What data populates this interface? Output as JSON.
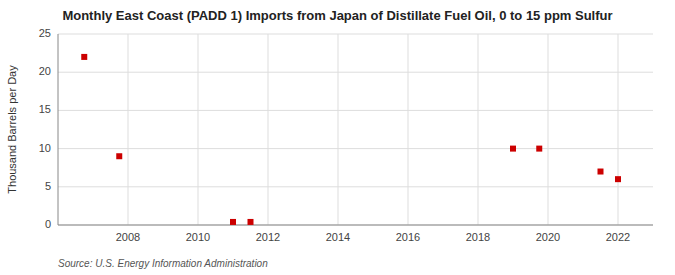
{
  "chart_data": {
    "type": "scatter",
    "title": "Monthly East Coast (PADD 1) Imports from Japan of Distillate Fuel Oil, 0 to 15 ppm Sulfur",
    "ylabel": "Thousand Barrels per Day",
    "source": "Source: U.S. Energy Information Administration",
    "x": [
      2006.75,
      2007.75,
      2011.0,
      2011.5,
      2019.0,
      2019.75,
      2021.5,
      2022.0
    ],
    "values": [
      22.0,
      9.0,
      0.4,
      0.4,
      10.0,
      10.0,
      7.0,
      6.0
    ],
    "color": "#cc0000",
    "marker": "square",
    "xlim": [
      2006,
      2023
    ],
    "ylim": [
      0,
      25
    ],
    "xticks": [
      2008,
      2010,
      2012,
      2014,
      2016,
      2018,
      2020,
      2022
    ],
    "yticks": [
      0,
      5,
      10,
      15,
      20,
      25
    ],
    "grid": true
  }
}
